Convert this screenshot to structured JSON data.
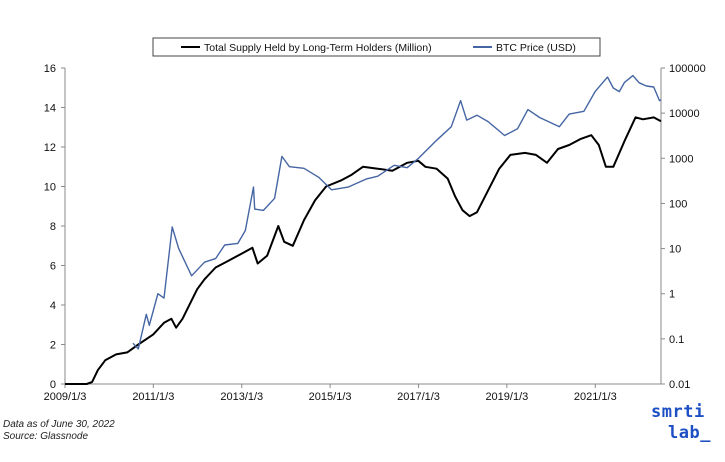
{
  "chart_data": {
    "type": "line",
    "title": "",
    "legend": {
      "placement": "top",
      "entries": [
        {
          "name": "Total Supply Held by Long-Term Holders (Million)",
          "color": "#000000"
        },
        {
          "name": "BTC Price (USD)",
          "color": "#4565a3"
        }
      ]
    },
    "x_axis": {
      "type": "date",
      "range": [
        "2009/1/3",
        "2022/6/30"
      ],
      "tick_labels": [
        "2009/1/3",
        "2011/1/3",
        "2013/1/3",
        "2015/1/3",
        "2017/1/3",
        "2019/1/3",
        "2021/1/3"
      ],
      "tick_dates": [
        "2009-01-03",
        "2011-01-03",
        "2013-01-03",
        "2015-01-03",
        "2017-01-03",
        "2019-01-03",
        "2021-01-03"
      ]
    },
    "y_left": {
      "range": [
        0,
        16
      ],
      "tick_labels": [
        "0",
        "2",
        "4",
        "6",
        "8",
        "10",
        "12",
        "14",
        "16"
      ],
      "tick_values": [
        0,
        2,
        4,
        6,
        8,
        10,
        12,
        14,
        16
      ]
    },
    "y_right": {
      "scale": "log",
      "range": [
        0.01,
        100000
      ],
      "tick_labels": [
        "0.01",
        "0.1",
        "1",
        "10",
        "100",
        "1000",
        "10000",
        "100000"
      ],
      "tick_values": [
        0.01,
        0.1,
        1,
        10,
        100,
        1000,
        10000,
        100000
      ]
    },
    "grid": false,
    "series": [
      {
        "name": "Total Supply Held by Long-Term Holders (Million)",
        "axis": "left",
        "color": "#000000",
        "points": [
          [
            "2009-01-03",
            0
          ],
          [
            "2009-07-01",
            0
          ],
          [
            "2009-08-15",
            0.1
          ],
          [
            "2009-10-01",
            0.7
          ],
          [
            "2009-12-01",
            1.2
          ],
          [
            "2010-03-01",
            1.5
          ],
          [
            "2010-06-01",
            1.6
          ],
          [
            "2010-09-01",
            2.0
          ],
          [
            "2011-01-01",
            2.5
          ],
          [
            "2011-04-01",
            3.1
          ],
          [
            "2011-06-01",
            3.3
          ],
          [
            "2011-07-10",
            2.85
          ],
          [
            "2011-09-01",
            3.3
          ],
          [
            "2012-01-01",
            4.8
          ],
          [
            "2012-03-01",
            5.3
          ],
          [
            "2012-06-01",
            5.9
          ],
          [
            "2012-09-01",
            6.2
          ],
          [
            "2013-01-01",
            6.6
          ],
          [
            "2013-04-01",
            6.9
          ],
          [
            "2013-05-15",
            6.1
          ],
          [
            "2013-08-01",
            6.5
          ],
          [
            "2013-11-01",
            8.0
          ],
          [
            "2013-12-20",
            7.2
          ],
          [
            "2014-03-01",
            7.0
          ],
          [
            "2014-06-01",
            8.3
          ],
          [
            "2014-09-01",
            9.3
          ],
          [
            "2014-12-01",
            10.0
          ],
          [
            "2015-04-01",
            10.3
          ],
          [
            "2015-07-01",
            10.6
          ],
          [
            "2015-10-01",
            11.0
          ],
          [
            "2016-02-01",
            10.9
          ],
          [
            "2016-06-01",
            10.8
          ],
          [
            "2016-10-01",
            11.2
          ],
          [
            "2017-01-01",
            11.3
          ],
          [
            "2017-03-01",
            11.0
          ],
          [
            "2017-06-01",
            10.9
          ],
          [
            "2017-09-01",
            10.4
          ],
          [
            "2017-11-01",
            9.5
          ],
          [
            "2018-01-01",
            8.8
          ],
          [
            "2018-03-01",
            8.5
          ],
          [
            "2018-05-01",
            8.7
          ],
          [
            "2018-08-01",
            9.8
          ],
          [
            "2018-11-01",
            10.9
          ],
          [
            "2019-02-01",
            11.6
          ],
          [
            "2019-06-01",
            11.7
          ],
          [
            "2019-09-01",
            11.6
          ],
          [
            "2019-12-01",
            11.2
          ],
          [
            "2020-03-01",
            11.9
          ],
          [
            "2020-06-01",
            12.1
          ],
          [
            "2020-09-01",
            12.4
          ],
          [
            "2020-12-01",
            12.6
          ],
          [
            "2021-02-01",
            12.1
          ],
          [
            "2021-04-01",
            11.0
          ],
          [
            "2021-06-01",
            11.0
          ],
          [
            "2021-09-01",
            12.3
          ],
          [
            "2021-12-01",
            13.5
          ],
          [
            "2022-02-01",
            13.4
          ],
          [
            "2022-05-01",
            13.5
          ],
          [
            "2022-06-30",
            13.3
          ]
        ]
      },
      {
        "name": "BTC Price (USD)",
        "axis": "right",
        "color": "#4565a3",
        "points": [
          [
            "2010-07-18",
            0.08
          ],
          [
            "2010-09-01",
            0.06
          ],
          [
            "2010-11-06",
            0.35
          ],
          [
            "2010-12-01",
            0.2
          ],
          [
            "2011-02-10",
            1.0
          ],
          [
            "2011-04-01",
            0.8
          ],
          [
            "2011-06-08",
            30
          ],
          [
            "2011-08-01",
            10
          ],
          [
            "2011-11-15",
            2.5
          ],
          [
            "2012-03-01",
            5
          ],
          [
            "2012-06-01",
            6
          ],
          [
            "2012-08-15",
            12
          ],
          [
            "2012-12-01",
            13
          ],
          [
            "2013-02-01",
            25
          ],
          [
            "2013-04-10",
            230
          ],
          [
            "2013-04-20",
            75
          ],
          [
            "2013-07-01",
            70
          ],
          [
            "2013-10-01",
            130
          ],
          [
            "2013-12-01",
            1100
          ],
          [
            "2014-02-01",
            650
          ],
          [
            "2014-06-01",
            600
          ],
          [
            "2014-10-01",
            380
          ],
          [
            "2015-01-15",
            200
          ],
          [
            "2015-06-01",
            230
          ],
          [
            "2015-11-01",
            350
          ],
          [
            "2016-02-01",
            400
          ],
          [
            "2016-06-15",
            700
          ],
          [
            "2016-10-01",
            620
          ],
          [
            "2017-01-03",
            1000
          ],
          [
            "2017-06-01",
            2500
          ],
          [
            "2017-10-01",
            5000
          ],
          [
            "2017-12-17",
            19000
          ],
          [
            "2018-02-05",
            7000
          ],
          [
            "2018-05-01",
            9000
          ],
          [
            "2018-08-01",
            6500
          ],
          [
            "2018-12-15",
            3200
          ],
          [
            "2019-04-01",
            4500
          ],
          [
            "2019-06-26",
            12000
          ],
          [
            "2019-10-01",
            8000
          ],
          [
            "2020-03-12",
            5000
          ],
          [
            "2020-06-01",
            9500
          ],
          [
            "2020-10-01",
            11000
          ],
          [
            "2021-01-01",
            30000
          ],
          [
            "2021-04-14",
            63000
          ],
          [
            "2021-06-01",
            36000
          ],
          [
            "2021-07-20",
            30000
          ],
          [
            "2021-09-01",
            48000
          ],
          [
            "2021-11-10",
            68000
          ],
          [
            "2022-01-01",
            47000
          ],
          [
            "2022-03-01",
            40000
          ],
          [
            "2022-05-01",
            38000
          ],
          [
            "2022-06-18",
            19000
          ],
          [
            "2022-06-30",
            19800
          ]
        ]
      }
    ]
  },
  "footnote": {
    "line1": "Data as of June 30, 2022",
    "line2": "Source: Glassnode"
  },
  "logo": {
    "line1": "smrti",
    "line2": "lab_"
  }
}
